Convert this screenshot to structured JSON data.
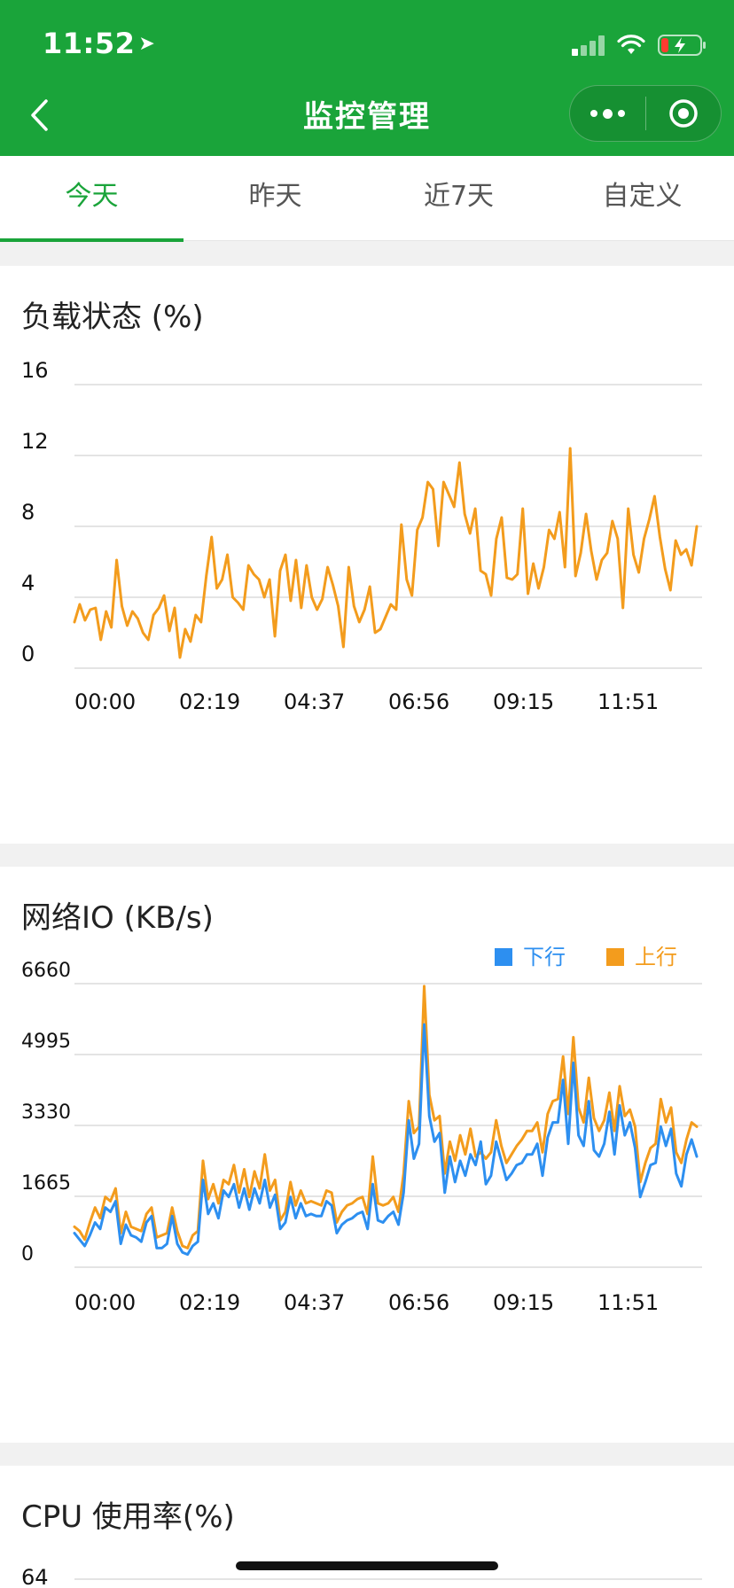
{
  "status_bar": {
    "time": "11:52",
    "location_icon": "location-arrow-icon",
    "signal_icon": "signal-icon",
    "wifi_icon": "wifi-icon",
    "battery_icon": "battery-charging-icon"
  },
  "nav": {
    "title": "监控管理",
    "back_icon": "chevron-left-icon",
    "more_icon": "more-dots-icon",
    "close_icon": "mini-program-close-icon"
  },
  "tabs": [
    {
      "label": "今天",
      "active": true
    },
    {
      "label": "昨天",
      "active": false
    },
    {
      "label": "近7天",
      "active": false
    },
    {
      "label": "自定义",
      "active": false
    }
  ],
  "colors": {
    "brand_green": "#1aa43a",
    "orange": "#f39c1d",
    "blue": "#2d8ff0"
  },
  "chart_data": [
    {
      "type": "line",
      "title": "负载状态 (%)",
      "y_ticks": [
        "16",
        "12",
        "8",
        "4",
        "0"
      ],
      "ylim": [
        0,
        16
      ],
      "x_ticks": [
        "00:00",
        "02:19",
        "04:37",
        "06:56",
        "09:15",
        "11:51"
      ],
      "grid": true,
      "series": [
        {
          "color": "#f39c1d",
          "values": [
            2.6,
            3.6,
            2.7,
            3.3,
            3.4,
            1.6,
            3.2,
            2.3,
            6.1,
            3.5,
            2.4,
            3.2,
            2.8,
            2.0,
            1.6,
            3.0,
            3.4,
            4.1,
            2.1,
            3.4,
            0.6,
            2.2,
            1.5,
            3.0,
            2.6,
            5.2,
            7.4,
            4.5,
            5.0,
            6.4,
            4.0,
            3.7,
            3.3,
            5.8,
            5.3,
            5.0,
            4.0,
            5.0,
            1.8,
            5.5,
            6.4,
            3.8,
            6.1,
            3.4,
            5.8,
            4.0,
            3.3,
            3.9,
            5.7,
            4.7,
            3.5,
            1.2,
            5.7,
            3.5,
            2.6,
            3.3,
            4.6,
            2.0,
            2.2,
            2.9,
            3.6,
            3.3,
            8.1,
            5.0,
            4.1,
            7.8,
            8.5,
            10.5,
            10.1,
            6.9,
            10.5,
            9.8,
            9.1,
            11.6,
            8.7,
            7.6,
            9.0,
            5.5,
            5.3,
            4.1,
            7.3,
            8.5,
            5.1,
            5.0,
            5.3,
            9.0,
            4.2,
            5.9,
            4.5,
            5.7,
            7.8,
            7.3,
            8.8,
            5.7,
            12.4,
            5.2,
            6.5,
            8.7,
            6.6,
            5.0,
            6.1,
            6.5,
            8.3,
            7.3,
            3.4,
            9.0,
            6.4,
            5.4,
            7.3,
            8.4,
            9.7,
            7.4,
            5.6,
            4.4,
            7.2,
            6.4,
            6.7,
            5.8,
            8.0
          ]
        }
      ]
    },
    {
      "type": "line",
      "title": "网络IO (KB/s)",
      "y_ticks": [
        "6660",
        "4995",
        "3330",
        "1665",
        "0"
      ],
      "ylim": [
        0,
        6660
      ],
      "x_ticks": [
        "00:00",
        "02:19",
        "04:37",
        "06:56",
        "09:15",
        "11:51"
      ],
      "grid": true,
      "legend_position": "top-right",
      "series": [
        {
          "name": "下行",
          "color": "#2d8ff0",
          "values": [
            800,
            650,
            500,
            750,
            1050,
            900,
            1400,
            1300,
            1550,
            550,
            1000,
            750,
            700,
            600,
            1050,
            1200,
            450,
            450,
            550,
            1200,
            550,
            350,
            300,
            500,
            600,
            2050,
            1250,
            1500,
            1150,
            1800,
            1650,
            1950,
            1400,
            1850,
            1350,
            1850,
            1500,
            2050,
            1400,
            1700,
            900,
            1050,
            1650,
            1150,
            1500,
            1200,
            1250,
            1200,
            1200,
            1550,
            1450,
            800,
            1000,
            1100,
            1150,
            1250,
            1300,
            900,
            1950,
            1100,
            1050,
            1200,
            1300,
            1000,
            1750,
            3450,
            2550,
            2900,
            5700,
            3550,
            2950,
            3150,
            1750,
            2600,
            2000,
            2500,
            2150,
            2650,
            2400,
            2950,
            1950,
            2150,
            2950,
            2500,
            2050,
            2200,
            2400,
            2450,
            2650,
            2650,
            2900,
            2150,
            3050,
            3400,
            3400,
            4400,
            2900,
            4800,
            3100,
            2850,
            3900,
            2750,
            2600,
            2900,
            3650,
            2650,
            3800,
            3100,
            3400,
            2800,
            1650,
            2000,
            2400,
            2450,
            3300,
            2850,
            3250,
            2200,
            1900,
            2650,
            3000,
            2600
          ]
        },
        {
          "name": "上行",
          "color": "#f39c1d",
          "values": [
            950,
            850,
            650,
            1050,
            1400,
            1150,
            1650,
            1550,
            1850,
            800,
            1300,
            950,
            900,
            850,
            1250,
            1400,
            700,
            750,
            800,
            1400,
            850,
            500,
            450,
            750,
            850,
            2500,
            1600,
            1950,
            1500,
            2050,
            1950,
            2400,
            1750,
            2300,
            1650,
            2250,
            1850,
            2650,
            1800,
            2050,
            1100,
            1300,
            2000,
            1450,
            1800,
            1500,
            1550,
            1500,
            1450,
            1800,
            1750,
            1050,
            1300,
            1450,
            1500,
            1600,
            1650,
            1250,
            2600,
            1500,
            1450,
            1500,
            1650,
            1300,
            2200,
            3900,
            3150,
            3300,
            6600,
            4050,
            3450,
            3550,
            2200,
            2950,
            2500,
            3100,
            2650,
            3250,
            2600,
            2700,
            2550,
            2700,
            3450,
            2850,
            2450,
            2650,
            2850,
            3000,
            3200,
            3200,
            3400,
            2700,
            3600,
            3900,
            3950,
            4950,
            3600,
            5400,
            3750,
            3400,
            4450,
            3500,
            3200,
            3450,
            4100,
            3200,
            4250,
            3550,
            3700,
            3300,
            2000,
            2450,
            2800,
            2900,
            3950,
            3400,
            3750,
            2700,
            2450,
            3000,
            3400,
            3300
          ]
        }
      ]
    },
    {
      "type": "line",
      "title": "CPU 使用率(%)",
      "y_ticks": [
        "64"
      ],
      "partial": true
    }
  ]
}
